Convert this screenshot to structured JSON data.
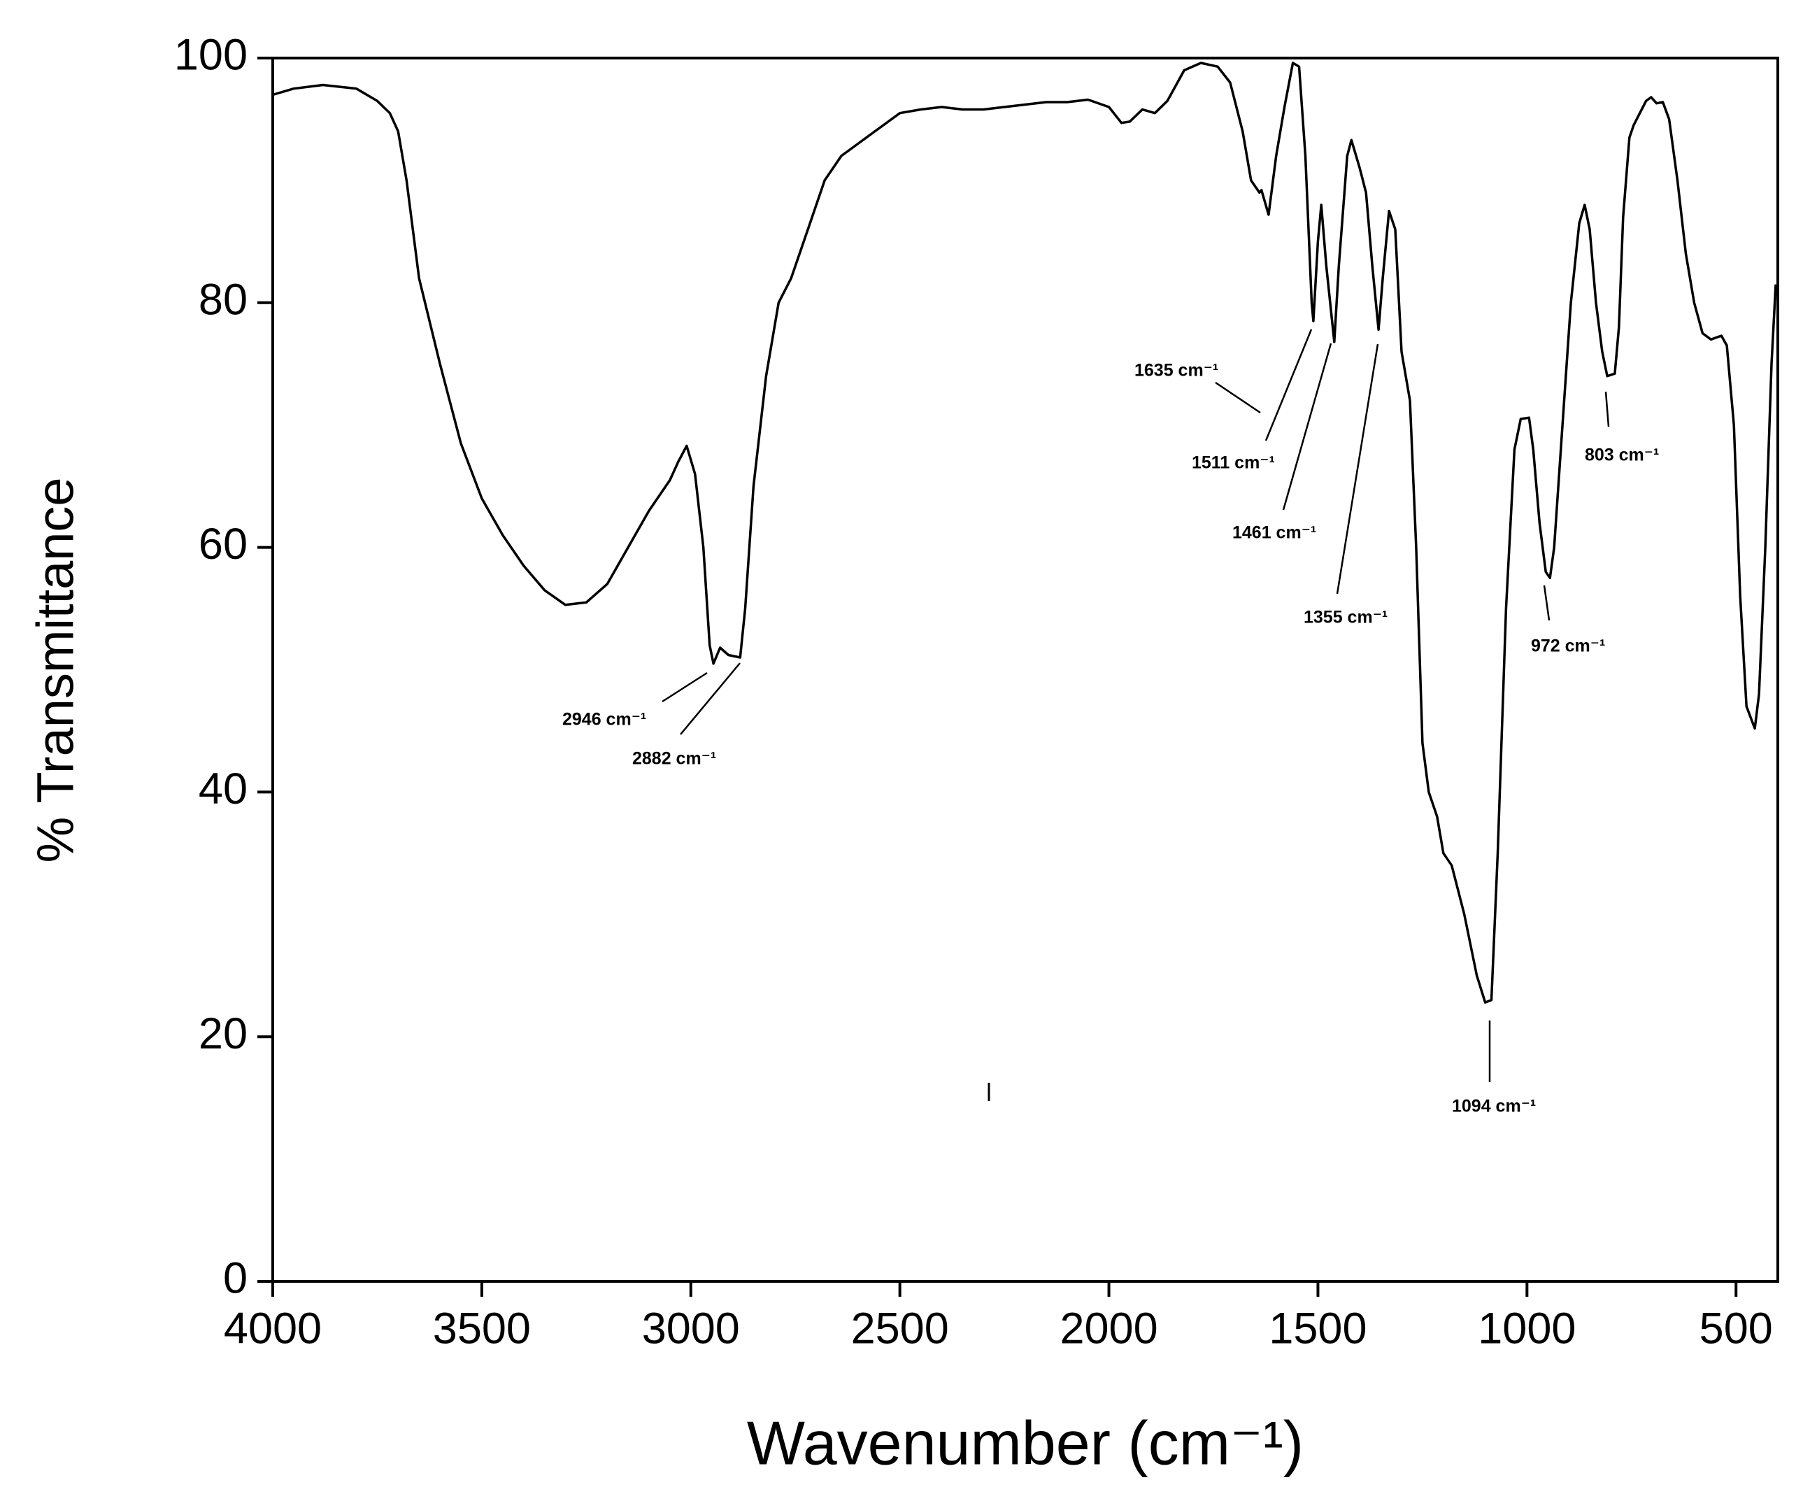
{
  "chart_data": {
    "type": "line",
    "x_label": "Wavenumber (cm⁻¹)",
    "y_label": "% Transmittance",
    "color": "#000000",
    "x": [
      4000,
      3950,
      3880,
      3800,
      3750,
      3720,
      3700,
      3680,
      3650,
      3600,
      3550,
      3500,
      3450,
      3400,
      3350,
      3300,
      3250,
      3200,
      3150,
      3100,
      3050,
      3030,
      3010,
      2990,
      2970,
      2955,
      2946,
      2930,
      2910,
      2882,
      2870,
      2850,
      2820,
      2790,
      2760,
      2720,
      2680,
      2640,
      2600,
      2560,
      2500,
      2450,
      2400,
      2350,
      2300,
      2250,
      2200,
      2150,
      2100,
      2050,
      2000,
      1970,
      1950,
      1920,
      1890,
      1860,
      1820,
      1780,
      1740,
      1710,
      1680,
      1660,
      1640,
      1635,
      1618,
      1600,
      1580,
      1560,
      1545,
      1530,
      1515,
      1511,
      1500,
      1492,
      1480,
      1461,
      1450,
      1430,
      1420,
      1400,
      1385,
      1370,
      1355,
      1345,
      1330,
      1315,
      1300,
      1290,
      1280,
      1265,
      1250,
      1235,
      1215,
      1200,
      1180,
      1150,
      1120,
      1100,
      1085,
      1070,
      1050,
      1030,
      1015,
      995,
      985,
      970,
      955,
      945,
      935,
      915,
      895,
      875,
      862,
      850,
      835,
      820,
      808,
      790,
      780,
      770,
      755,
      745,
      730,
      715,
      703,
      690,
      675,
      660,
      640,
      620,
      600,
      580,
      560,
      535,
      522,
      505,
      490,
      475,
      455,
      445,
      430,
      415,
      405
    ],
    "values": [
      97,
      97.5,
      97.8,
      97.5,
      96.5,
      95.5,
      94,
      90,
      82,
      75,
      68.5,
      64,
      61,
      58.5,
      56.5,
      55.3,
      55.5,
      57,
      60,
      63,
      65.5,
      67,
      68.3,
      66,
      60,
      52,
      50.5,
      51.8,
      51.2,
      51,
      55,
      65,
      74,
      80,
      82,
      86,
      90,
      92,
      93,
      94,
      95.5,
      95.8,
      96,
      95.8,
      95.8,
      96,
      96.2,
      96.4,
      96.4,
      96.6,
      96,
      94.7,
      94.8,
      95.8,
      95.5,
      96.5,
      99,
      99.6,
      99.3,
      98,
      94,
      90,
      89,
      89.2,
      87.2,
      92,
      96,
      99.6,
      99.3,
      92,
      80,
      78.5,
      85,
      88,
      83,
      76.8,
      83,
      92,
      93.3,
      91,
      89,
      83,
      77.8,
      82,
      87.5,
      86,
      76,
      74,
      72,
      60,
      44,
      40,
      38,
      35,
      34,
      30,
      25,
      22.8,
      23,
      35,
      55,
      68,
      70.5,
      70.6,
      68,
      62,
      58,
      57.5,
      60,
      70,
      80,
      86.5,
      88,
      86,
      80,
      76,
      74,
      74.2,
      78,
      87,
      93.5,
      94.5,
      95.5,
      96.5,
      96.8,
      96.3,
      96.4,
      95,
      90,
      84,
      80,
      77.5,
      77,
      77.3,
      76.5,
      70,
      56,
      47,
      45.2,
      48,
      60,
      75,
      81.5
    ],
    "xlim": [
      4000,
      400
    ],
    "ylim": [
      0,
      100
    ],
    "xticks": [
      4000,
      3500,
      3000,
      2500,
      2000,
      1500,
      1000,
      500
    ],
    "yticks": [
      0,
      20,
      40,
      60,
      80,
      100
    ],
    "annotations": [
      "2946 cm⁻¹",
      "2882 cm⁻¹",
      "1635 cm⁻¹",
      "1511 cm⁻¹",
      "1461 cm⁻¹",
      "1355 cm⁻¹",
      "1094 cm⁻¹",
      "972 cm⁻¹",
      "803 cm⁻¹"
    ]
  }
}
